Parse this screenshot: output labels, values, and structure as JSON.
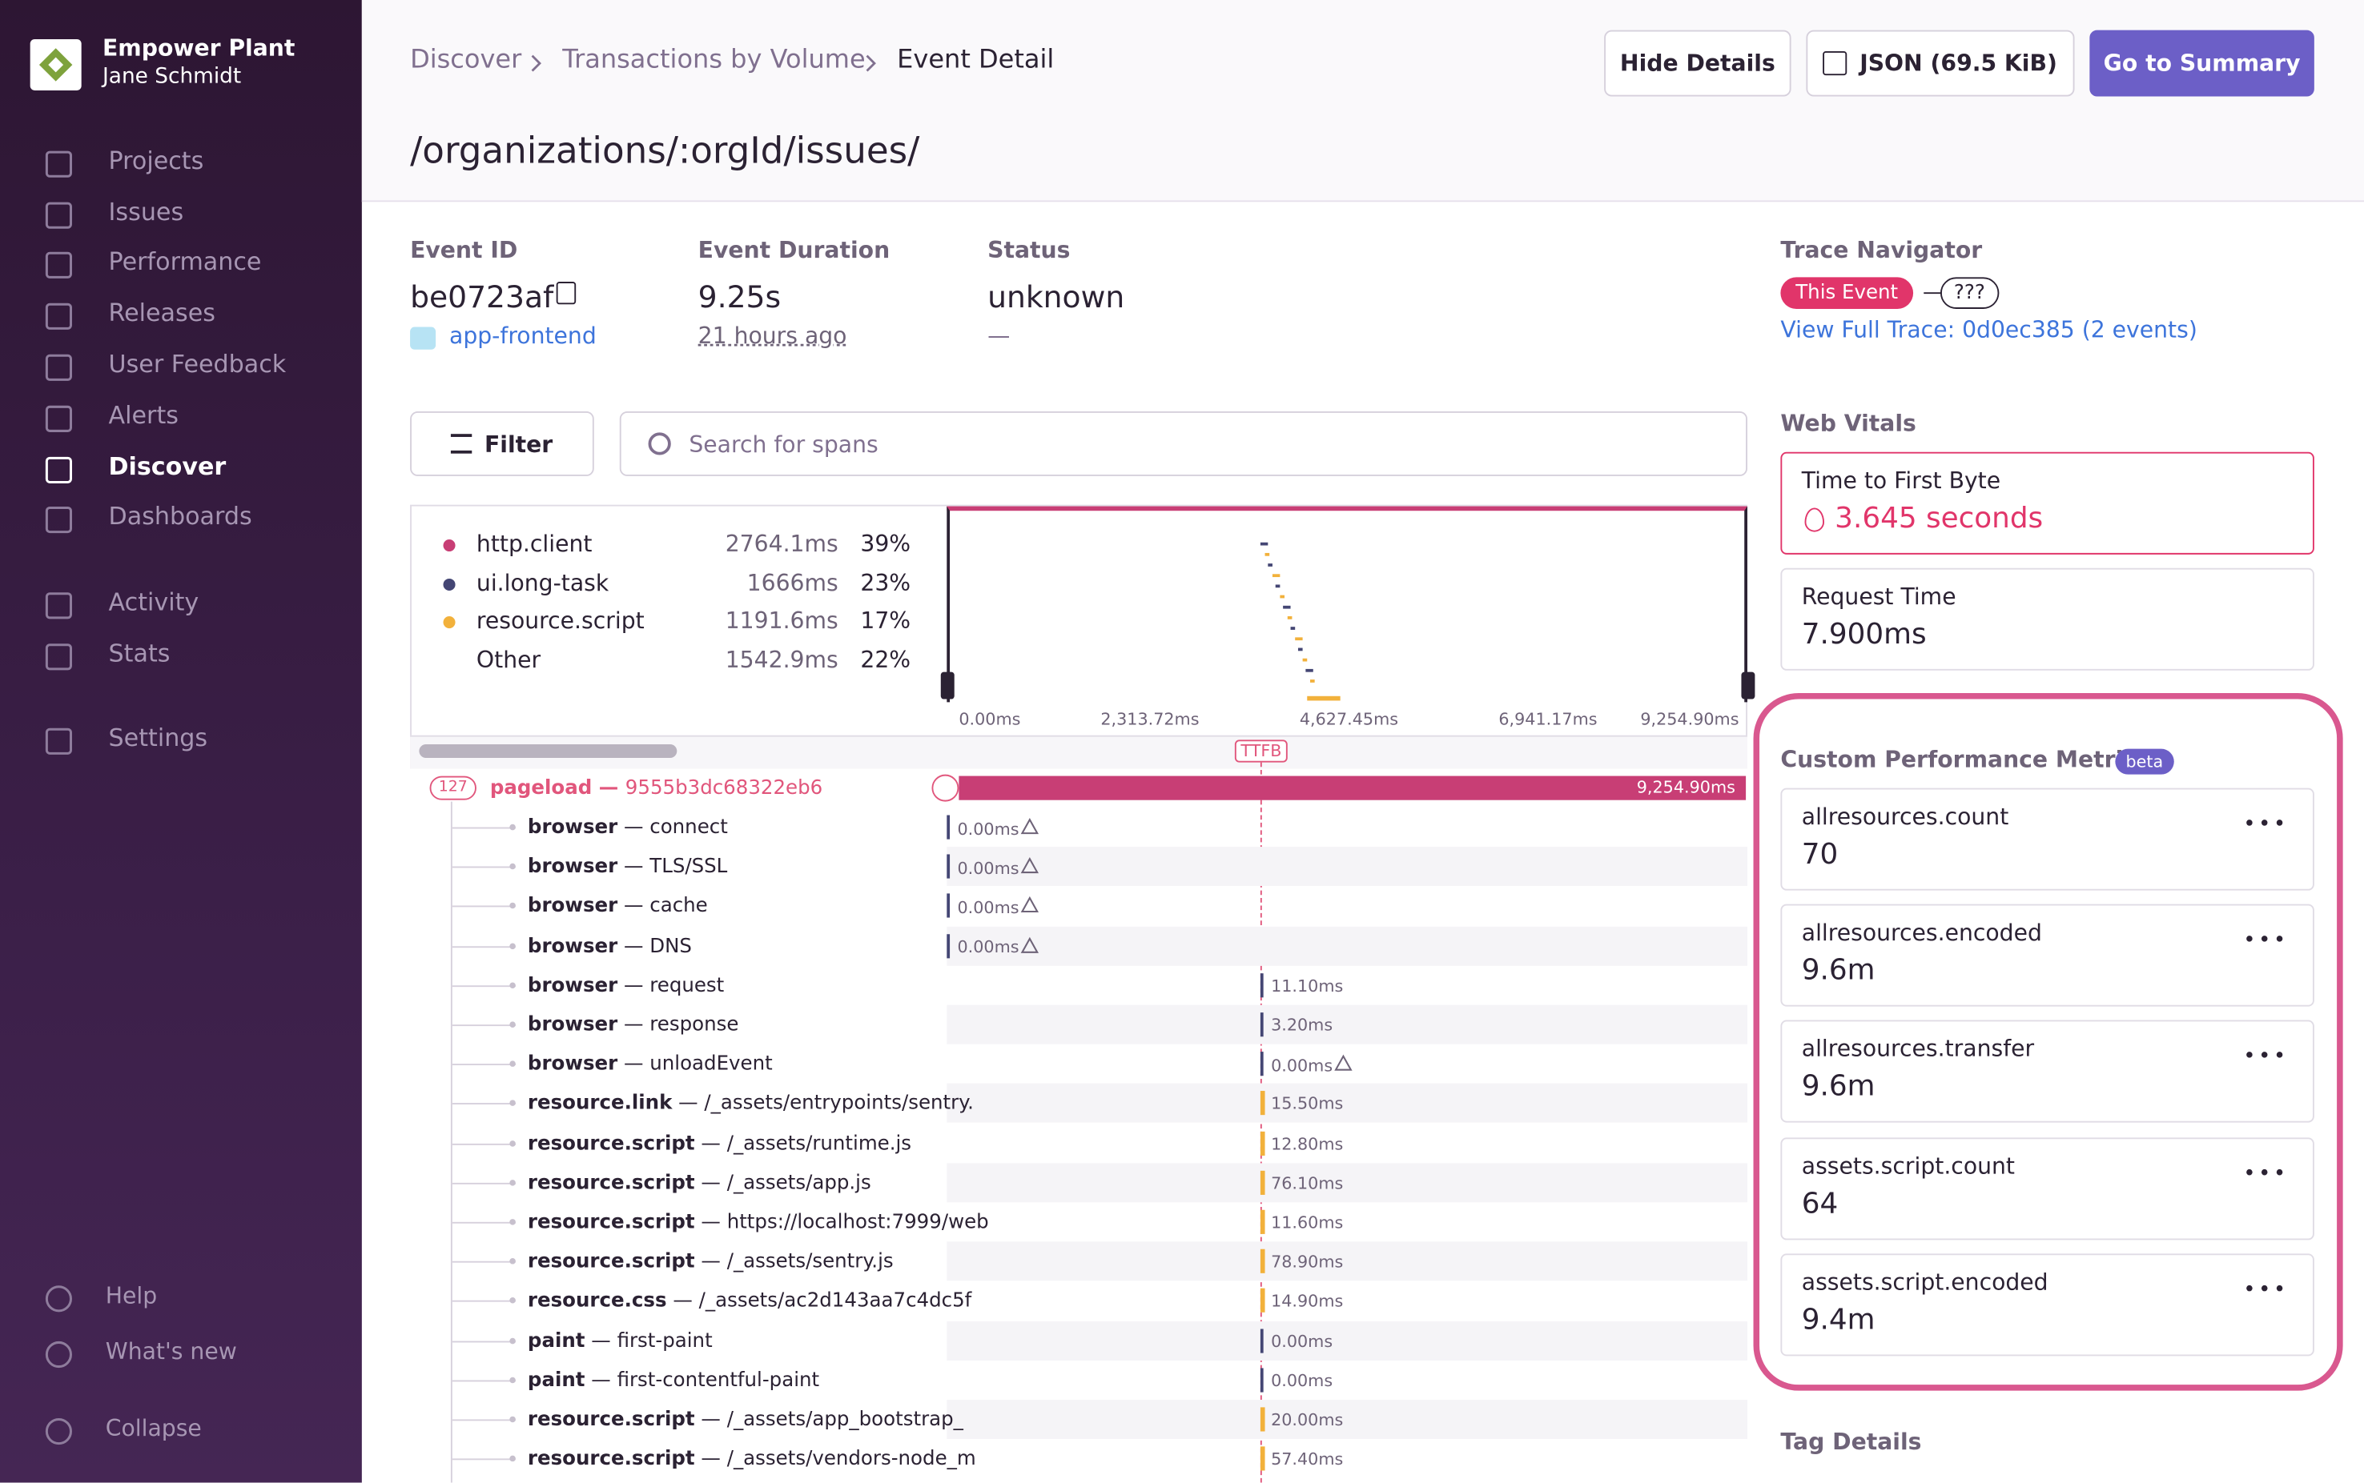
{
  "sidebar": {
    "org": "Empower Plant",
    "user": "Jane Schmidt",
    "nav": [
      "Projects",
      "Issues",
      "Performance",
      "Releases",
      "User Feedback",
      "Alerts",
      "Discover",
      "Dashboards",
      "Activity",
      "Stats",
      "Settings"
    ],
    "active": "Discover",
    "footer": [
      "Help",
      "What's new",
      "Collapse"
    ]
  },
  "header": {
    "breadcrumbs": [
      "Discover",
      "Transactions by Volume",
      "Event Detail"
    ],
    "title": "/organizations/:orgId/issues/",
    "buttons": [
      "Hide Details",
      "JSON (69.5 KiB)",
      "Go to Summary"
    ]
  },
  "event": {
    "fields": [
      {
        "label": "Event ID",
        "value": "be0723af",
        "sub": "app-frontend"
      },
      {
        "label": "Event Duration",
        "value": "9.25s",
        "sub": "21 hours ago"
      },
      {
        "label": "Status",
        "value": "unknown",
        "sub": "—"
      }
    ]
  },
  "trace": {
    "label": "Trace Navigator",
    "this_event": "This Event",
    "unknown": "???",
    "link": "View Full Trace: 0d0ec385 (2 events)"
  },
  "filter": "Filter",
  "search_placeholder": "Search for spans",
  "ops": [
    {
      "name": "http.client",
      "duration": "2764.1ms",
      "percent": "39%"
    },
    {
      "name": "ui.long-task",
      "duration": "1666ms",
      "percent": "23%"
    },
    {
      "name": "resource.script",
      "duration": "1191.6ms",
      "percent": "17%"
    },
    {
      "name": "Other",
      "duration": "1542.9ms",
      "percent": "22%"
    }
  ],
  "axis": [
    "0.00ms",
    "2,313.72ms",
    "4,627.45ms",
    "6,941.17ms",
    "9,254.90ms"
  ],
  "ttfb": "TTFB",
  "root": {
    "count": "127",
    "op": "pageload",
    "id": "9555b3dc68322eb6",
    "duration": "9,254.90ms"
  },
  "separator": "—",
  "spans": [
    {
      "op": "browser",
      "desc": "connect",
      "duration": "0.00ms",
      "warning": true
    },
    {
      "op": "browser",
      "desc": "TLS/SSL",
      "duration": "0.00ms",
      "warning": true
    },
    {
      "op": "browser",
      "desc": "cache",
      "duration": "0.00ms",
      "warning": true
    },
    {
      "op": "browser",
      "desc": "DNS",
      "duration": "0.00ms",
      "warning": true
    },
    {
      "op": "browser",
      "desc": "request",
      "duration": "11.10ms"
    },
    {
      "op": "browser",
      "desc": "response",
      "duration": "3.20ms"
    },
    {
      "op": "browser",
      "desc": "unloadEvent",
      "duration": "0.00ms",
      "warning": true
    },
    {
      "op": "resource.link",
      "desc": "/_assets/entrypoints/sentry.",
      "duration": "15.50ms"
    },
    {
      "op": "resource.script",
      "desc": "/_assets/runtime.js",
      "duration": "12.80ms"
    },
    {
      "op": "resource.script",
      "desc": "/_assets/app.js",
      "duration": "76.10ms"
    },
    {
      "op": "resource.script",
      "desc": "https://localhost:7999/web",
      "duration": "11.60ms"
    },
    {
      "op": "resource.script",
      "desc": "/_assets/sentry.js",
      "duration": "78.90ms"
    },
    {
      "op": "resource.css",
      "desc": "/_assets/ac2d143aa7c4dc5f",
      "duration": "14.90ms"
    },
    {
      "op": "paint",
      "desc": "first-paint",
      "duration": "0.00ms"
    },
    {
      "op": "paint",
      "desc": "first-contentful-paint",
      "duration": "0.00ms"
    },
    {
      "op": "resource.script",
      "desc": "/_assets/app_bootstrap_",
      "duration": "20.00ms"
    },
    {
      "op": "resource.script",
      "desc": "/_assets/vendors-node_m",
      "duration": "57.40ms"
    }
  ],
  "web_vitals": {
    "title": "Web Vitals",
    "items": [
      {
        "name": "Time to First Byte",
        "value": "3.645 seconds"
      },
      {
        "name": "Request Time",
        "value": "7.900ms"
      }
    ]
  },
  "custom_metrics": {
    "title": "Custom Performance Metrics",
    "badge": "beta",
    "items": [
      {
        "name": "allresources.count",
        "value": "70"
      },
      {
        "name": "allresources.encoded",
        "value": "9.6m"
      },
      {
        "name": "allresources.transfer",
        "value": "9.6m"
      },
      {
        "name": "assets.script.count",
        "value": "64"
      },
      {
        "name": "assets.script.encoded",
        "value": "9.4m"
      }
    ]
  },
  "tag_details": "Tag Details"
}
